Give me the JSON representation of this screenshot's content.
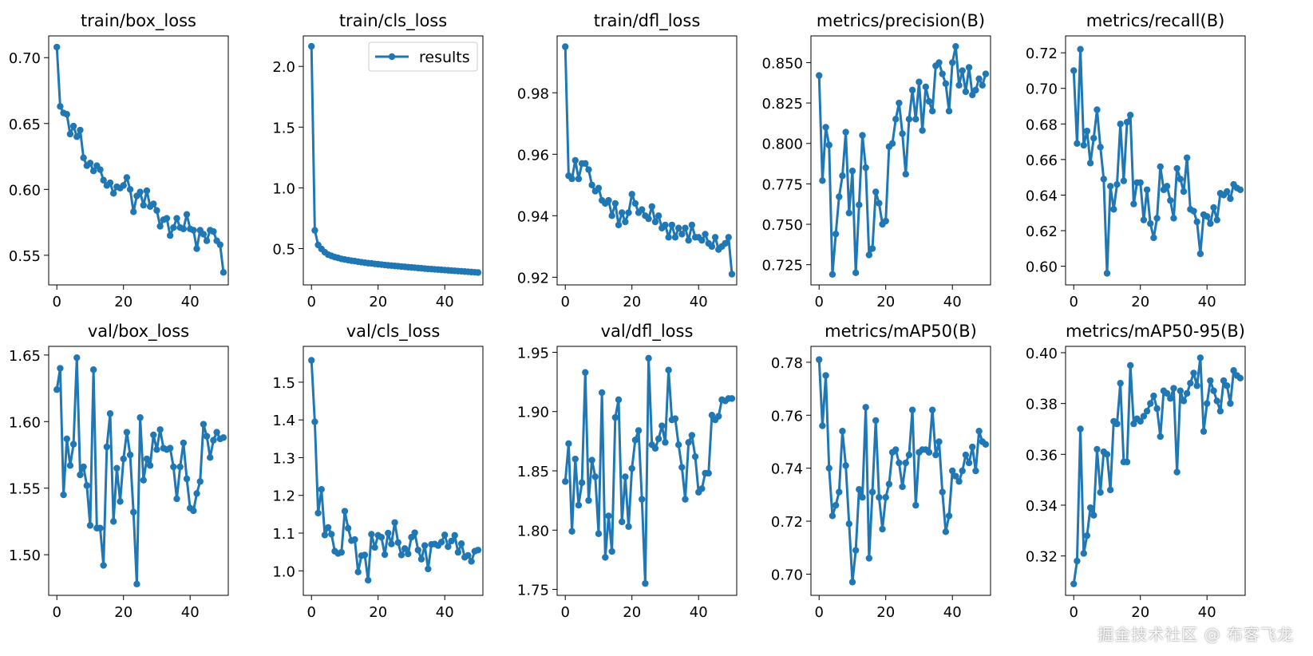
{
  "accent_color": "#1f77b4",
  "legend": {
    "label": "results",
    "placement": "upper-right of train/cls_loss"
  },
  "watermark": "掘金技术社区 @ 布客飞龙",
  "chart_data": [
    {
      "type": "line",
      "title": "train/box_loss",
      "xlim": [
        -2.45,
        51.45
      ],
      "ylim": [
        0.5275,
        0.7165
      ],
      "yticks": [
        0.55,
        0.6,
        0.65,
        0.7
      ],
      "ytick_labels": [
        "0.55",
        "0.60",
        "0.65",
        "0.70"
      ],
      "xticks": [
        0,
        20,
        40
      ],
      "y": [
        0.708,
        0.663,
        0.658,
        0.657,
        0.642,
        0.648,
        0.64,
        0.645,
        0.624,
        0.618,
        0.62,
        0.614,
        0.618,
        0.615,
        0.607,
        0.603,
        0.605,
        0.597,
        0.602,
        0.601,
        0.603,
        0.609,
        0.6,
        0.583,
        0.595,
        0.598,
        0.588,
        0.599,
        0.587,
        0.589,
        0.584,
        0.572,
        0.577,
        0.578,
        0.565,
        0.571,
        0.578,
        0.571,
        0.57,
        0.581,
        0.57,
        0.569,
        0.555,
        0.569,
        0.566,
        0.561,
        0.569,
        0.568,
        0.561,
        0.558,
        0.537
      ]
    },
    {
      "type": "line",
      "title": "train/cls_loss",
      "xlim": [
        -2.45,
        51.45
      ],
      "ylim": [
        0.201,
        2.251
      ],
      "yticks": [
        0.5,
        1.0,
        1.5,
        2.0
      ],
      "ytick_labels": [
        "0.5",
        "1.0",
        "1.5",
        "2.0"
      ],
      "xticks": [
        0,
        20,
        40
      ],
      "legend": true,
      "y": [
        2.165,
        0.65,
        0.53,
        0.497,
        0.47,
        0.45,
        0.44,
        0.43,
        0.423,
        0.415,
        0.41,
        0.405,
        0.4,
        0.397,
        0.392,
        0.388,
        0.384,
        0.38,
        0.378,
        0.374,
        0.371,
        0.368,
        0.365,
        0.362,
        0.36,
        0.357,
        0.355,
        0.352,
        0.35,
        0.347,
        0.345,
        0.343,
        0.34,
        0.338,
        0.335,
        0.333,
        0.331,
        0.329,
        0.327,
        0.325,
        0.323,
        0.321,
        0.319,
        0.317,
        0.315,
        0.313,
        0.311,
        0.309,
        0.307,
        0.305,
        0.303
      ]
    },
    {
      "type": "line",
      "title": "train/dfl_loss",
      "xlim": [
        -2.45,
        51.45
      ],
      "ylim": [
        0.9175,
        0.9985
      ],
      "yticks": [
        0.92,
        0.94,
        0.96,
        0.98
      ],
      "ytick_labels": [
        "0.92",
        "0.94",
        "0.96",
        "0.98"
      ],
      "xticks": [
        0,
        20,
        40
      ],
      "y": [
        0.995,
        0.953,
        0.952,
        0.958,
        0.952,
        0.957,
        0.957,
        0.955,
        0.95,
        0.948,
        0.949,
        0.945,
        0.944,
        0.945,
        0.94,
        0.944,
        0.937,
        0.941,
        0.938,
        0.941,
        0.947,
        0.944,
        0.941,
        0.942,
        0.94,
        0.939,
        0.943,
        0.938,
        0.94,
        0.936,
        0.937,
        0.933,
        0.937,
        0.933,
        0.936,
        0.934,
        0.936,
        0.932,
        0.937,
        0.933,
        0.933,
        0.932,
        0.934,
        0.931,
        0.93,
        0.933,
        0.929,
        0.93,
        0.931,
        0.933,
        0.921
      ]
    },
    {
      "type": "line",
      "title": "metrics/precision(B)",
      "xlim": [
        -2.45,
        51.45
      ],
      "ylim": [
        0.7125,
        0.8665
      ],
      "yticks": [
        0.725,
        0.75,
        0.775,
        0.8,
        0.825,
        0.85
      ],
      "ytick_labels": [
        "0.725",
        "0.750",
        "0.775",
        "0.800",
        "0.825",
        "0.850"
      ],
      "xticks": [
        0,
        20,
        40
      ],
      "y": [
        0.842,
        0.777,
        0.81,
        0.799,
        0.719,
        0.744,
        0.767,
        0.78,
        0.807,
        0.757,
        0.783,
        0.72,
        0.762,
        0.805,
        0.785,
        0.731,
        0.735,
        0.77,
        0.763,
        0.75,
        0.752,
        0.798,
        0.8,
        0.815,
        0.825,
        0.806,
        0.781,
        0.815,
        0.833,
        0.815,
        0.838,
        0.808,
        0.835,
        0.826,
        0.82,
        0.848,
        0.85,
        0.843,
        0.837,
        0.82,
        0.85,
        0.86,
        0.836,
        0.845,
        0.832,
        0.847,
        0.83,
        0.833,
        0.84,
        0.836,
        0.843
      ]
    },
    {
      "type": "line",
      "title": "metrics/recall(B)",
      "xlim": [
        -2.45,
        51.45
      ],
      "ylim": [
        0.5895,
        0.7295
      ],
      "yticks": [
        0.6,
        0.62,
        0.64,
        0.66,
        0.68,
        0.7,
        0.72
      ],
      "ytick_labels": [
        "0.60",
        "0.62",
        "0.64",
        "0.66",
        "0.68",
        "0.70",
        "0.72"
      ],
      "xticks": [
        0,
        20,
        40
      ],
      "y": [
        0.71,
        0.669,
        0.722,
        0.668,
        0.676,
        0.658,
        0.672,
        0.688,
        0.667,
        0.649,
        0.596,
        0.645,
        0.632,
        0.646,
        0.68,
        0.648,
        0.681,
        0.685,
        0.635,
        0.647,
        0.647,
        0.626,
        0.643,
        0.624,
        0.616,
        0.627,
        0.656,
        0.643,
        0.645,
        0.637,
        0.627,
        0.655,
        0.649,
        0.642,
        0.661,
        0.632,
        0.631,
        0.625,
        0.607,
        0.629,
        0.628,
        0.624,
        0.633,
        0.626,
        0.641,
        0.64,
        0.642,
        0.638,
        0.646,
        0.644,
        0.643
      ]
    },
    {
      "type": "line",
      "title": "val/box_loss",
      "xlim": [
        -2.45,
        51.45
      ],
      "ylim": [
        1.4695,
        1.6565
      ],
      "yticks": [
        1.5,
        1.55,
        1.6,
        1.65
      ],
      "ytick_labels": [
        "1.50",
        "1.55",
        "1.60",
        "1.65"
      ],
      "xticks": [
        0,
        20,
        40
      ],
      "y": [
        1.624,
        1.64,
        1.545,
        1.587,
        1.567,
        1.583,
        1.648,
        1.56,
        1.566,
        1.552,
        1.522,
        1.639,
        1.52,
        1.52,
        1.492,
        1.581,
        1.606,
        1.525,
        1.565,
        1.54,
        1.572,
        1.592,
        1.575,
        1.532,
        1.478,
        1.603,
        1.556,
        1.572,
        1.567,
        1.59,
        1.579,
        1.594,
        1.58,
        1.579,
        1.58,
        1.566,
        1.542,
        1.566,
        1.584,
        1.557,
        1.535,
        1.533,
        1.546,
        1.555,
        1.598,
        1.589,
        1.573,
        1.586,
        1.592,
        1.587,
        1.588
      ]
    },
    {
      "type": "line",
      "title": "val/cls_loss",
      "xlim": [
        -2.45,
        51.45
      ],
      "ylim": [
        0.935,
        1.595
      ],
      "yticks": [
        1.0,
        1.1,
        1.2,
        1.3,
        1.4,
        1.5
      ],
      "ytick_labels": [
        "1.0",
        "1.1",
        "1.2",
        "1.3",
        "1.4",
        "1.5"
      ],
      "xticks": [
        0,
        20,
        40
      ],
      "y": [
        1.558,
        1.395,
        1.153,
        1.216,
        1.095,
        1.115,
        1.097,
        1.052,
        1.046,
        1.049,
        1.158,
        1.113,
        1.08,
        1.083,
        0.997,
        1.04,
        1.042,
        0.975,
        1.097,
        1.062,
        1.094,
        1.089,
        1.043,
        1.1,
        1.071,
        1.128,
        1.075,
        1.042,
        1.059,
        1.045,
        1.089,
        1.101,
        1.055,
        1.031,
        1.067,
        1.005,
        1.07,
        1.071,
        1.067,
        1.076,
        1.095,
        1.064,
        1.079,
        1.094,
        1.049,
        1.072,
        1.036,
        1.041,
        1.025,
        1.052,
        1.055
      ]
    },
    {
      "type": "line",
      "title": "val/dfl_loss",
      "xlim": [
        -2.45,
        51.45
      ],
      "ylim": [
        1.745,
        1.955
      ],
      "yticks": [
        1.75,
        1.8,
        1.85,
        1.9,
        1.95
      ],
      "ytick_labels": [
        "1.75",
        "1.80",
        "1.85",
        "1.90",
        "1.95"
      ],
      "xticks": [
        0,
        20,
        40
      ],
      "y": [
        1.841,
        1.873,
        1.799,
        1.86,
        1.821,
        1.84,
        1.933,
        1.825,
        1.859,
        1.845,
        1.797,
        1.916,
        1.777,
        1.812,
        1.782,
        1.895,
        1.91,
        1.807,
        1.845,
        1.803,
        1.852,
        1.876,
        1.884,
        1.826,
        1.755,
        1.945,
        1.872,
        1.869,
        1.877,
        1.888,
        1.874,
        1.935,
        1.893,
        1.894,
        1.872,
        1.853,
        1.826,
        1.874,
        1.88,
        1.862,
        1.832,
        1.835,
        1.848,
        1.848,
        1.897,
        1.893,
        1.896,
        1.91,
        1.909,
        1.911,
        1.911
      ]
    },
    {
      "type": "line",
      "title": "metrics/mAP50(B)",
      "xlim": [
        -2.45,
        51.45
      ],
      "ylim": [
        0.692,
        0.786
      ],
      "yticks": [
        0.7,
        0.72,
        0.74,
        0.76,
        0.78
      ],
      "ytick_labels": [
        "0.70",
        "0.72",
        "0.74",
        "0.76",
        "0.78"
      ],
      "xticks": [
        0,
        20,
        40
      ],
      "y": [
        0.781,
        0.756,
        0.775,
        0.74,
        0.722,
        0.726,
        0.731,
        0.754,
        0.741,
        0.719,
        0.697,
        0.709,
        0.732,
        0.729,
        0.763,
        0.706,
        0.731,
        0.758,
        0.729,
        0.717,
        0.729,
        0.734,
        0.746,
        0.747,
        0.742,
        0.733,
        0.742,
        0.745,
        0.762,
        0.726,
        0.746,
        0.747,
        0.747,
        0.746,
        0.762,
        0.745,
        0.75,
        0.731,
        0.716,
        0.722,
        0.739,
        0.737,
        0.735,
        0.739,
        0.745,
        0.742,
        0.748,
        0.739,
        0.754,
        0.75,
        0.749
      ]
    },
    {
      "type": "line",
      "title": "metrics/mAP50-95(B)",
      "xlim": [
        -2.45,
        51.45
      ],
      "ylim": [
        0.3045,
        0.4025
      ],
      "yticks": [
        0.32,
        0.34,
        0.36,
        0.38,
        0.4
      ],
      "ytick_labels": [
        "0.32",
        "0.34",
        "0.36",
        "0.38",
        "0.40"
      ],
      "xticks": [
        0,
        20,
        40
      ],
      "y": [
        0.309,
        0.318,
        0.37,
        0.321,
        0.328,
        0.339,
        0.336,
        0.362,
        0.345,
        0.361,
        0.36,
        0.346,
        0.373,
        0.372,
        0.388,
        0.357,
        0.357,
        0.395,
        0.372,
        0.374,
        0.373,
        0.375,
        0.377,
        0.38,
        0.383,
        0.378,
        0.367,
        0.385,
        0.384,
        0.382,
        0.386,
        0.353,
        0.385,
        0.381,
        0.384,
        0.388,
        0.392,
        0.387,
        0.398,
        0.369,
        0.38,
        0.389,
        0.385,
        0.381,
        0.377,
        0.389,
        0.387,
        0.38,
        0.393,
        0.391,
        0.39
      ]
    }
  ]
}
